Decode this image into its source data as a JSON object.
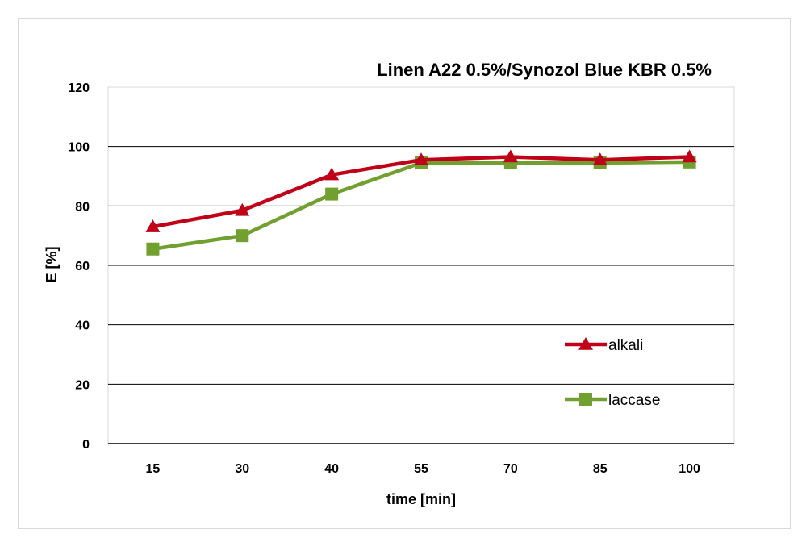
{
  "chart_data": {
    "type": "line",
    "title": "Linen A22 0.5%/Synozol Blue KBR 0.5%",
    "xlabel": "time [min]",
    "ylabel": "E [%]",
    "categories": [
      "15",
      "30",
      "40",
      "55",
      "70",
      "85",
      "100"
    ],
    "ylim": [
      0,
      120
    ],
    "yticks": [
      0,
      20,
      40,
      60,
      80,
      100,
      120
    ],
    "grid": "horizontal",
    "legend_position": "right",
    "series": [
      {
        "name": "alkali",
        "values": [
          73,
          78.5,
          90.5,
          95.5,
          96.5,
          95.5,
          96.5
        ],
        "color": "#c00018",
        "marker": "triangle"
      },
      {
        "name": "laccase",
        "values": [
          65.5,
          70,
          84,
          94.5,
          94.5,
          94.5,
          94.8
        ],
        "color": "#72a030",
        "marker": "square"
      }
    ]
  }
}
